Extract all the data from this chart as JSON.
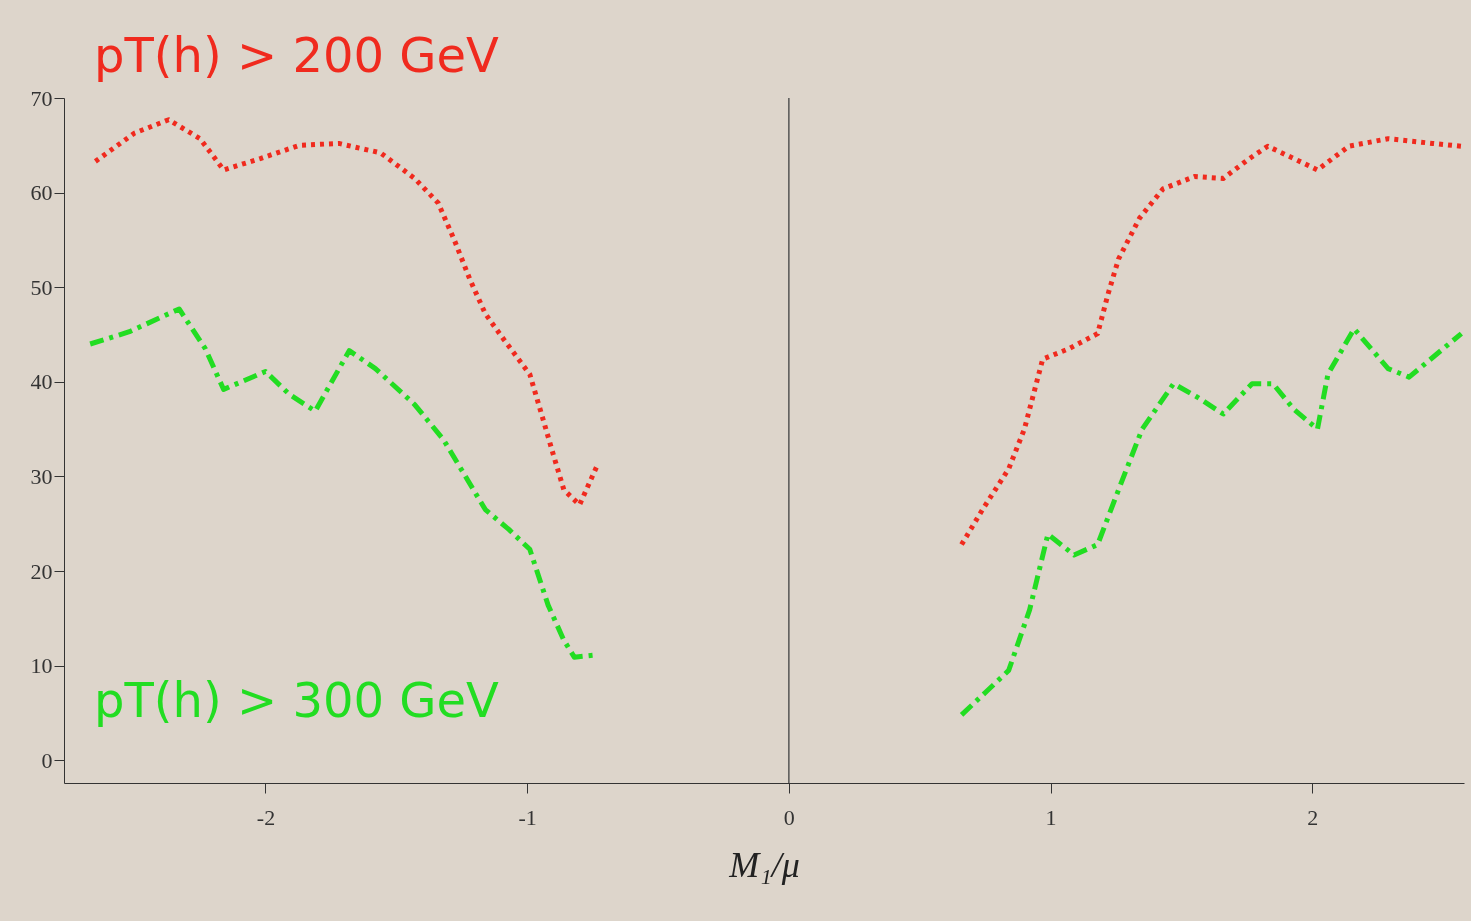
{
  "chart_data": {
    "type": "line",
    "xlabel": "M₁/μ",
    "xlim": [
      -2.77,
      2.58
    ],
    "xticks": [
      -2,
      -1,
      0,
      1,
      2
    ],
    "ylim": [
      -2.4,
      70
    ],
    "yticks": [
      0,
      10,
      20,
      30,
      40,
      50,
      60,
      70
    ],
    "grid": false,
    "legend": false,
    "marker": "none",
    "ref_lines": [
      {
        "axis": "x",
        "value": 0,
        "color": "#555555"
      }
    ],
    "series": [
      {
        "name": "pT(h) > 200 GeV",
        "color": "#f02a1e",
        "line_style": "dotted",
        "x": [
          -2.65,
          -2.5,
          -2.37,
          -2.25,
          -2.16,
          -2.02,
          -1.87,
          -1.72,
          -1.56,
          -1.43,
          -1.34,
          -1.28,
          -1.22,
          -1.16,
          -1.09,
          -0.99,
          -0.94,
          -0.9,
          -0.86,
          -0.8,
          -0.73,
          0,
          0.66,
          0.74,
          0.84,
          0.9,
          0.97,
          1.07,
          1.18,
          1.22,
          1.26,
          1.34,
          1.43,
          1.55,
          1.66,
          1.76,
          1.83,
          1.93,
          2.02,
          2.14,
          2.29,
          2.46,
          2.57
        ],
        "values": [
          63.3,
          66.3,
          67.7,
          65.7,
          62.4,
          63.6,
          65,
          65.2,
          64.2,
          61.5,
          58.9,
          55.1,
          50.9,
          47.2,
          44.5,
          40.8,
          36.1,
          32.3,
          28.6,
          27,
          31.3,
          null,
          22.8,
          26.5,
          30.8,
          35,
          42.4,
          43.5,
          45.1,
          49.3,
          53,
          57.3,
          60.4,
          61.7,
          61.5,
          63.6,
          64.9,
          63.6,
          62.4,
          64.9,
          65.7,
          65.2,
          64.9
        ]
      },
      {
        "name": "pT(h) > 300 GeV",
        "color": "#22dd22",
        "line_style": "dashed",
        "x": [
          -2.67,
          -2.52,
          -2.33,
          -2.23,
          -2.16,
          -2,
          -1.91,
          -1.81,
          -1.68,
          -1.58,
          -1.43,
          -1.32,
          -1.24,
          -1.16,
          -1.07,
          -0.99,
          -0.92,
          -0.86,
          -0.82,
          -0.75,
          0,
          0.66,
          0.76,
          0.84,
          0.92,
          0.99,
          1.09,
          1.18,
          1.26,
          1.35,
          1.47,
          1.56,
          1.66,
          1.77,
          1.85,
          1.93,
          2.02,
          2.06,
          2.16,
          2.29,
          2.37,
          2.57
        ],
        "values": [
          44,
          45.3,
          47.7,
          43.5,
          39.2,
          41.1,
          38.7,
          36.9,
          43.3,
          41.4,
          37.6,
          33.9,
          30.2,
          26.5,
          24.4,
          22.3,
          16.4,
          12.7,
          10.9,
          11.1,
          null,
          4.8,
          7.4,
          9.5,
          15.9,
          23.9,
          21.7,
          22.8,
          28.6,
          35,
          39.8,
          38.4,
          36.6,
          39.8,
          39.8,
          37.1,
          35,
          40.8,
          45.6,
          41.4,
          40.5,
          45.1
        ]
      }
    ]
  }
}
